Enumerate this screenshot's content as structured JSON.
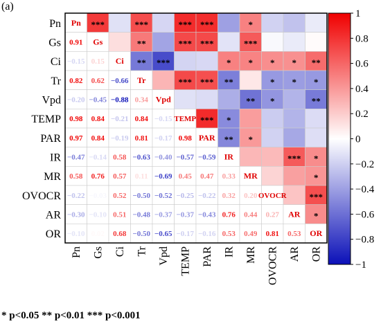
{
  "panel_label": "(a)",
  "footnote": "* p<0.05  ** p<0.01  *** p<0.001",
  "colors": {
    "negative": "#0b10b8",
    "zero": "#ffffff",
    "positive": "#f00000",
    "grid": "#cccccc"
  },
  "chart_data": {
    "type": "heatmap",
    "title": "",
    "variables": [
      "Pn",
      "Gs",
      "Ci",
      "Tr",
      "Vpd",
      "TEMP",
      "PAR",
      "IR",
      "MR",
      "OVOCR",
      "AR",
      "OR"
    ],
    "matrix": [
      [
        1,
        0.91,
        -0.15,
        0.82,
        -0.2,
        0.98,
        0.97,
        -0.47,
        0.58,
        -0.22,
        -0.3,
        -0.1
      ],
      [
        0.91,
        1,
        0.15,
        0.62,
        -0.45,
        0.84,
        0.84,
        -0.14,
        0.76,
        -0.03,
        -0.1,
        0.02
      ],
      [
        -0.15,
        0.15,
        1,
        -0.66,
        -0.88,
        -0.21,
        -0.19,
        0.58,
        0.57,
        0.52,
        0.51,
        0.68
      ],
      [
        0.82,
        0.62,
        -0.66,
        1,
        0.34,
        0.84,
        0.81,
        -0.63,
        0.11,
        -0.5,
        -0.48,
        -0.5
      ],
      [
        -0.2,
        -0.45,
        -0.88,
        0.34,
        1,
        -0.15,
        -0.17,
        -0.4,
        -0.69,
        -0.52,
        -0.37,
        -0.65
      ],
      [
        0.98,
        0.84,
        -0.21,
        0.84,
        -0.15,
        1,
        0.98,
        -0.57,
        0.45,
        -0.25,
        -0.37,
        -0.17
      ],
      [
        0.97,
        0.84,
        -0.19,
        0.81,
        -0.17,
        0.98,
        1,
        -0.59,
        0.47,
        -0.22,
        -0.43,
        -0.16
      ],
      [
        -0.47,
        -0.14,
        0.58,
        -0.63,
        -0.4,
        -0.57,
        -0.59,
        1,
        0.33,
        0.32,
        0.76,
        0.53
      ],
      [
        0.58,
        0.76,
        0.57,
        0.11,
        -0.69,
        0.45,
        0.47,
        0.33,
        1,
        0.2,
        0.44,
        0.49
      ],
      [
        -0.22,
        -0.03,
        0.52,
        -0.5,
        -0.52,
        -0.25,
        -0.22,
        0.32,
        0.2,
        1,
        0.27,
        0.81
      ],
      [
        -0.3,
        -0.1,
        0.51,
        -0.48,
        -0.37,
        -0.37,
        -0.43,
        0.76,
        0.44,
        0.27,
        1,
        0.53
      ],
      [
        -0.1,
        0.02,
        0.68,
        -0.5,
        -0.65,
        -0.17,
        -0.16,
        0.53,
        0.49,
        0.81,
        0.53,
        1
      ]
    ],
    "lower_labels": [
      [],
      [
        "0.91"
      ],
      [
        "−0.15",
        "0.15"
      ],
      [
        "0.82",
        "0.62",
        "−0.66"
      ],
      [
        "−0.20",
        "−0.45",
        "−0.88",
        "0.34"
      ],
      [
        "0.98",
        "0.84",
        "−0.21",
        "0.84",
        "−0.15"
      ],
      [
        "0.97",
        "0.84",
        "−0.19",
        "0.81",
        "−0.17",
        "0.98"
      ],
      [
        "−0.47",
        "−0.14",
        "0.58",
        "−0.63",
        "−0.40",
        "−0.57",
        "−0.59"
      ],
      [
        "0.58",
        "0.76",
        "0.57",
        "0.11",
        "−0.69",
        "0.45",
        "0.47",
        "0.33"
      ],
      [
        "−0.22",
        "−0.03",
        "0.52",
        "−0.50",
        "−0.52",
        "−0.25",
        "−0.22",
        "0.32",
        "0.20"
      ],
      [
        "−0.30",
        "−0.10",
        "0.51",
        "−0.48",
        "−0.37",
        "−0.37",
        "−0.43",
        "0.76",
        "0.44",
        "0.27"
      ],
      [
        "−0.10",
        "0.02",
        "0.68",
        "−0.50",
        "−0.65",
        "−0.17",
        "−0.16",
        "0.53",
        "0.49",
        "0.81",
        "0.53"
      ]
    ],
    "upper_stars": [
      [
        "",
        "***",
        "",
        "***",
        "",
        "***",
        "***",
        "",
        "*",
        "",
        "",
        ""
      ],
      [
        "",
        "",
        "",
        "**",
        "",
        "***",
        "***",
        "",
        "***",
        "",
        "",
        ""
      ],
      [
        "",
        "",
        "",
        "**",
        "***",
        "",
        "",
        "*",
        "*",
        "*",
        "*",
        "**"
      ],
      [
        "",
        "",
        "",
        "",
        "",
        "***",
        "***",
        "**",
        "",
        "*",
        "*",
        "*"
      ],
      [
        "",
        "",
        "",
        "",
        "",
        "",
        "",
        "",
        "**",
        "*",
        "",
        "**"
      ],
      [
        "",
        "",
        "",
        "",
        "",
        "",
        "***",
        "*",
        "",
        "",
        "",
        ""
      ],
      [
        "",
        "",
        "",
        "",
        "",
        "",
        "",
        "**",
        "*",
        "",
        "",
        ""
      ],
      [
        "",
        "",
        "",
        "",
        "",
        "",
        "",
        "",
        "",
        "",
        "***",
        "*"
      ],
      [
        "",
        "",
        "",
        "",
        "",
        "",
        "",
        "",
        "",
        "",
        "",
        "*"
      ],
      [
        "",
        "",
        "",
        "",
        "",
        "",
        "",
        "",
        "",
        "",
        "",
        "***"
      ],
      [
        "",
        "",
        "",
        "",
        "",
        "",
        "",
        "",
        "",
        "",
        "",
        "*"
      ],
      [
        "",
        "",
        "",
        "",
        "",
        "",
        "",
        "",
        "",
        "",
        "",
        ""
      ]
    ],
    "colorbar": {
      "range": [
        -1,
        1
      ],
      "ticks": [
        1,
        0.8,
        0.6,
        0.4,
        0.2,
        0,
        -0.2,
        -0.4,
        -0.6,
        -0.8,
        -1
      ],
      "tick_labels": [
        "1",
        "0.8",
        "0.6",
        "0.4",
        "0.2",
        "0",
        "−0.2",
        "−0.4",
        "−0.6",
        "−0.8",
        "−1"
      ]
    }
  }
}
